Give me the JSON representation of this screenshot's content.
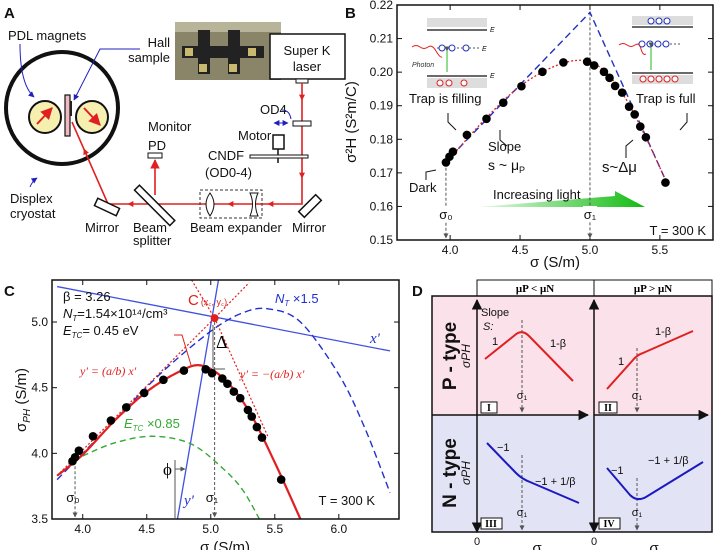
{
  "panel_labels": {
    "a": "A",
    "b": "B",
    "c": "C",
    "d": "D"
  },
  "panel_a": {
    "pdl_magnets": "PDL  magnets",
    "hall_1": "Hall",
    "hall_2": "sample",
    "laser_1": "Super K",
    "laser_2": "laser",
    "od4": "OD4",
    "monitor_1": "Monitor",
    "monitor_2": "PD",
    "motor": "Motor",
    "cndf_1": "CNDF",
    "cndf_2": "(OD0-4)",
    "displex_1": "Displex",
    "displex_2": "cryostat",
    "mirror_left": "Mirror",
    "beam_splitter_1": "Beam",
    "beam_splitter_2": "splitter",
    "beam_expander": "Beam expander",
    "mirror_right": "Mirror",
    "colors": {
      "laser": "#e02020",
      "magnet": "#f6f0b0",
      "sample": "#f0b8c0",
      "pointer": "#2020c0"
    }
  },
  "chart_data": [
    {
      "type": "scatter",
      "panel": "B",
      "xlabel": "σ (S/m)",
      "ylabel": "σ²H (S²m/C)",
      "xlim": [
        3.62,
        5.88
      ],
      "ylim": [
        0.15,
        0.22
      ],
      "xticks": [
        "4.0",
        "4.5",
        "5.0",
        "5.5"
      ],
      "xtick_values": [
        4.0,
        4.5,
        5.0,
        5.5
      ],
      "yticks": [
        "0.15",
        "0.16",
        "0.17",
        "0.18",
        "0.19",
        "0.20",
        "0.21",
        "0.22"
      ],
      "ytick_values": [
        0.15,
        0.16,
        0.17,
        0.18,
        0.19,
        0.2,
        0.21,
        0.22
      ],
      "points": {
        "x": [
          3.97,
          3.995,
          4.02,
          4.12,
          4.26,
          4.38,
          4.51,
          4.66,
          4.81,
          4.98,
          5.03,
          5.1,
          5.14,
          5.18,
          5.23,
          5.28,
          5.32,
          5.36,
          5.4,
          5.54
        ],
        "y": [
          0.1731,
          0.1748,
          0.1763,
          0.1813,
          0.1861,
          0.1909,
          0.1958,
          0.2001,
          0.2029,
          0.2031,
          0.202,
          0.2001,
          0.1983,
          0.1959,
          0.1939,
          0.1897,
          0.1874,
          0.1838,
          0.1806,
          0.1671
        ]
      },
      "asymptotes": {
        "color": "#2030c0",
        "x": [
          3.95,
          5.0,
          5.55
        ],
        "y": [
          0.1725,
          0.2178,
          0.167
        ]
      },
      "fit": {
        "color": "#e02020",
        "x": [
          3.97,
          4.25,
          4.5,
          4.75,
          4.95,
          5.1,
          5.25,
          5.4,
          5.55
        ],
        "y": [
          0.173,
          0.186,
          0.1958,
          0.2018,
          0.2035,
          0.2005,
          0.1925,
          0.1805,
          0.167
        ]
      },
      "markers": {
        "sigma0": {
          "label": "σ₀",
          "x": 3.97
        },
        "sigma1": {
          "label": "σ₁",
          "x": 5.0
        }
      },
      "annotations": {
        "trap_filling": "Trap is filling",
        "slope": "Slope",
        "slope_p": "s ~ μ",
        "slope_p_sub": "P",
        "dark": "Dark",
        "increasing_light": "Increasing light",
        "trap_full": "Trap is full",
        "slope_delta": "s~Δμ",
        "temperature": "T = 300 K",
        "ec": "E",
        "ec_sub": "C",
        "et": "E",
        "et_sub": "T",
        "ev": "E",
        "ev_sub": "V",
        "photon": "Photon"
      },
      "arrow_color": "#22bb22"
    },
    {
      "type": "scatter",
      "panel": "C",
      "xlabel": "σ (S/m)",
      "ylabel": "σ",
      "ylabel_sub": "PH",
      "ylabel_unit": " (S/m)",
      "xlim": [
        3.76,
        6.47
      ],
      "ylim": [
        3.5,
        5.32
      ],
      "xticks": [
        "4.0",
        "4.5",
        "5.0",
        "5.5",
        "6.0"
      ],
      "xtick_values": [
        4.0,
        4.5,
        5.0,
        5.5,
        6.0
      ],
      "yticks": [
        "3.5",
        "4.0",
        "4.5",
        "5.0"
      ],
      "ytick_values": [
        3.5,
        4.0,
        4.5,
        5.0
      ],
      "points": {
        "x": [
          3.92,
          3.94,
          3.97,
          4.08,
          4.22,
          4.34,
          4.48,
          4.63,
          4.79,
          4.96,
          5.01,
          5.09,
          5.13,
          5.18,
          5.23,
          5.29,
          5.32,
          5.36,
          5.4,
          5.55
        ],
        "y": [
          3.94,
          3.97,
          4.02,
          4.13,
          4.25,
          4.35,
          4.46,
          4.56,
          4.63,
          4.64,
          4.61,
          4.57,
          4.53,
          4.47,
          4.42,
          4.33,
          4.28,
          4.2,
          4.12,
          3.8
        ]
      },
      "fit": {
        "color": "#e02020",
        "x": [
          3.8,
          4.0,
          4.25,
          4.5,
          4.75,
          4.92,
          5.1,
          5.3,
          5.5,
          5.7
        ],
        "y": [
          3.83,
          3.99,
          4.25,
          4.47,
          4.62,
          4.67,
          4.57,
          4.32,
          3.93,
          3.5
        ]
      },
      "nt_curve": {
        "label": "N",
        "label_sub": "T",
        "label_tail": " ×1.5",
        "color": "#2030d0",
        "x": [
          3.8,
          4.2,
          4.6,
          5.0,
          5.25,
          5.45,
          5.7,
          6.0,
          6.2,
          6.4
        ],
        "y": [
          3.8,
          4.2,
          4.6,
          4.93,
          5.07,
          5.1,
          5.0,
          4.6,
          4.2,
          3.7
        ]
      },
      "etc_curve": {
        "label": "E",
        "label_sub": "TC",
        "label_tail": " ×0.85",
        "color": "#33aa33",
        "x": [
          4.0,
          4.25,
          4.55,
          4.85,
          5.1,
          5.25,
          5.38
        ],
        "y": [
          3.98,
          4.08,
          4.13,
          4.07,
          3.88,
          3.72,
          3.5
        ]
      },
      "x_prime_axis": {
        "label": "x'",
        "color": "#4050e0",
        "x": [
          3.8,
          6.4
        ],
        "y": [
          5.27,
          4.78
        ]
      },
      "y_prime_axis": {
        "label": "y'",
        "color": "#4050e0",
        "x": [
          4.74,
          5.06
        ],
        "y": [
          3.5,
          5.32
        ]
      },
      "asymptote_left": {
        "label": "y' = (a/b) x'",
        "color": "#e02020",
        "x": [
          3.8,
          5.03,
          5.3
        ],
        "y": [
          3.83,
          5.03,
          5.3
        ]
      },
      "asymptote_right": {
        "label": "y' = −(a/b) x'",
        "color": "#e02020",
        "x": [
          4.85,
          5.03,
          5.45
        ],
        "y": [
          5.32,
          5.03,
          4.12
        ]
      },
      "point_c": {
        "label": "C",
        "label_coords": "(x",
        "x": 5.03,
        "y": 5.03,
        "color": "#e02020"
      },
      "annotations": {
        "beta": "β = 3.26",
        "nt": "N",
        "nt_sub": "T",
        "nt_value": "=1.54×10¹⁴/cm³",
        "etc": "E",
        "etc_sub": "TC",
        "etc_value": "= 0.45 eV",
        "delta": "Δ",
        "phi": "ϕ",
        "sigma0": "σ₀",
        "sigma1": "σ₁",
        "temperature": "T = 300 K",
        "c_coords": "(x꜀, y꜀)"
      },
      "markers": {
        "sigma0": 3.94,
        "sigma1": 5.03
      }
    }
  ],
  "panel_d": {
    "header_left": "μP < μN",
    "header_right": "μP > μN",
    "row_top": "P - type",
    "row_bottom": "N - type",
    "y_axis": "σPH",
    "x_axis": "σ",
    "origin": "0",
    "slope_title": "Slope",
    "slope_s": "S:",
    "q1": {
      "id": "I",
      "slope_left": "1",
      "slope_right": "1-β",
      "sigma1": "σ₁"
    },
    "q2": {
      "id": "II",
      "slope_left": "1",
      "slope_right": "1-β",
      "sigma1": "σ₁"
    },
    "q3": {
      "id": "III",
      "slope_left": "−1",
      "slope_right": "−1 + 1/β",
      "sigma1": "σ₁"
    },
    "q4": {
      "id": "IV",
      "slope_left": "−1",
      "slope_right": "−1 + 1/β",
      "sigma1": "σ₁"
    },
    "colors": {
      "top_bg": "#fbe1ea",
      "bottom_bg": "#e3e3f6",
      "p_curve": "#e02020",
      "n_curve": "#1a1ac0"
    }
  }
}
